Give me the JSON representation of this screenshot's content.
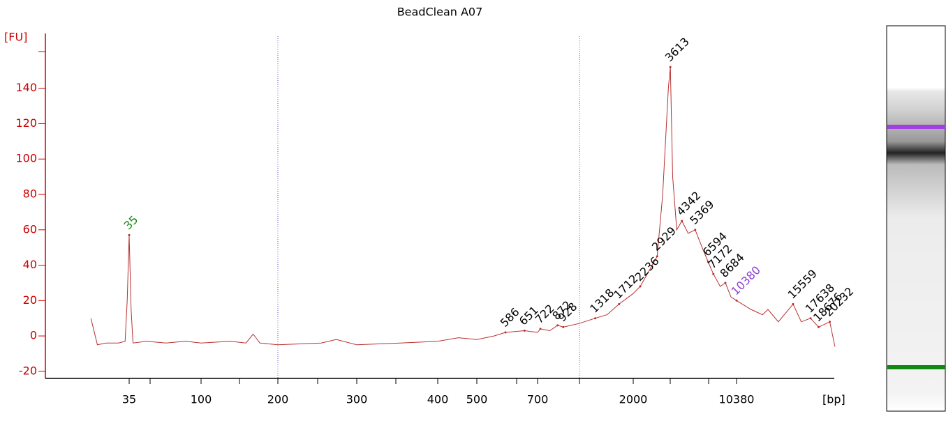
{
  "chart_data": {
    "type": "line",
    "title": "BeadClean A07",
    "y_label": "[FU]",
    "x_label": "[bp]",
    "ylim": [
      -24,
      171
    ],
    "yticks": [
      -20,
      0,
      20,
      40,
      60,
      80,
      100,
      120,
      140
    ],
    "xticks": [
      35,
      100,
      200,
      300,
      400,
      500,
      700,
      2000,
      10380
    ],
    "axis_color": "#cc0000",
    "trace": {
      "color": "#b83030",
      "x": [
        20,
        22,
        25,
        30,
        33,
        34,
        35,
        36,
        37,
        45,
        60,
        80,
        100,
        130,
        150,
        160,
        170,
        200,
        250,
        270,
        300,
        350,
        400,
        450,
        500,
        550,
        586,
        651,
        700,
        722,
        800,
        872,
        928,
        1100,
        1318,
        1500,
        1712,
        1900,
        2000,
        2236,
        2500,
        2929,
        3200,
        3500,
        3613,
        3750,
        4000,
        4342,
        4800,
        5369,
        6000,
        6594,
        7172,
        8000,
        8684,
        9500,
        10380,
        11500,
        12500,
        13000,
        14000,
        15559,
        16500,
        17638,
        18676,
        20232,
        21000
      ],
      "values": [
        10,
        -5,
        -4,
        -4,
        -3,
        20,
        57,
        15,
        -4,
        -3,
        -4,
        -3,
        -4,
        -3,
        -4,
        1,
        -4,
        -5,
        -4,
        -2,
        -5,
        -4,
        -3,
        -1,
        -2,
        0,
        2,
        3,
        2,
        4,
        3,
        6,
        5,
        7,
        10,
        12,
        18,
        22,
        24,
        28,
        35,
        45,
        80,
        140,
        152,
        90,
        60,
        65,
        58,
        60,
        50,
        42,
        35,
        28,
        30,
        22,
        20,
        15,
        12,
        15,
        8,
        18,
        8,
        10,
        5,
        8,
        -6
      ]
    },
    "peaks": {
      "x": [
        35,
        586,
        651,
        722,
        872,
        928,
        1318,
        1712,
        2236,
        2929,
        3613,
        4342,
        5369,
        6594,
        7172,
        8684,
        10380,
        15559,
        17638,
        18676,
        20232
      ],
      "values": [
        57,
        2,
        3,
        4,
        6,
        5,
        10,
        18,
        28,
        45,
        152,
        65,
        60,
        42,
        35,
        30,
        20,
        18,
        10,
        5,
        8
      ],
      "colors": [
        "#118811",
        "#000",
        "#000",
        "#000",
        "#000",
        "#000",
        "#000",
        "#000",
        "#000",
        "#000",
        "#000",
        "#000",
        "#000",
        "#000",
        "#000",
        "#000",
        "#8a3fd1",
        "#000",
        "#000",
        "#000",
        "#000"
      ]
    }
  }
}
